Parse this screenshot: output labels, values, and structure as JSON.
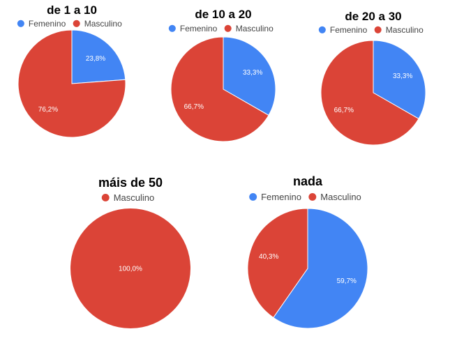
{
  "colors": {
    "femenino": "#4285F4",
    "masculino": "#DB4437"
  },
  "chart_data": [
    {
      "type": "pie",
      "title": "de 1 a 10",
      "legend": [
        "Femenino",
        "Masculino"
      ],
      "slices": [
        {
          "name": "Femenino",
          "value": 23.8,
          "label": "23,8%",
          "color": "#4285F4"
        },
        {
          "name": "Masculino",
          "value": 76.2,
          "label": "76,2%",
          "color": "#DB4437"
        }
      ]
    },
    {
      "type": "pie",
      "title": "de 10 a 20",
      "legend": [
        "Femenino",
        "Masculino"
      ],
      "slices": [
        {
          "name": "Femenino",
          "value": 33.3,
          "label": "33,3%",
          "color": "#4285F4"
        },
        {
          "name": "Masculino",
          "value": 66.7,
          "label": "66,7%",
          "color": "#DB4437"
        }
      ]
    },
    {
      "type": "pie",
      "title": "de 20 a 30",
      "legend": [
        "Femenino",
        "Masculino"
      ],
      "slices": [
        {
          "name": "Femenino",
          "value": 33.3,
          "label": "33,3%",
          "color": "#4285F4"
        },
        {
          "name": "Masculino",
          "value": 66.7,
          "label": "66,7%",
          "color": "#DB4437"
        }
      ]
    },
    {
      "type": "pie",
      "title": "máis de 50",
      "legend": [
        "Masculino"
      ],
      "slices": [
        {
          "name": "Masculino",
          "value": 100.0,
          "label": "100,0%",
          "color": "#DB4437"
        }
      ]
    },
    {
      "type": "pie",
      "title": "nada",
      "legend": [
        "Femenino",
        "Masculino"
      ],
      "slices": [
        {
          "name": "Femenino",
          "value": 59.7,
          "label": "59,7%",
          "color": "#4285F4"
        },
        {
          "name": "Masculino",
          "value": 40.3,
          "label": "40,3%",
          "color": "#DB4437"
        }
      ]
    }
  ]
}
